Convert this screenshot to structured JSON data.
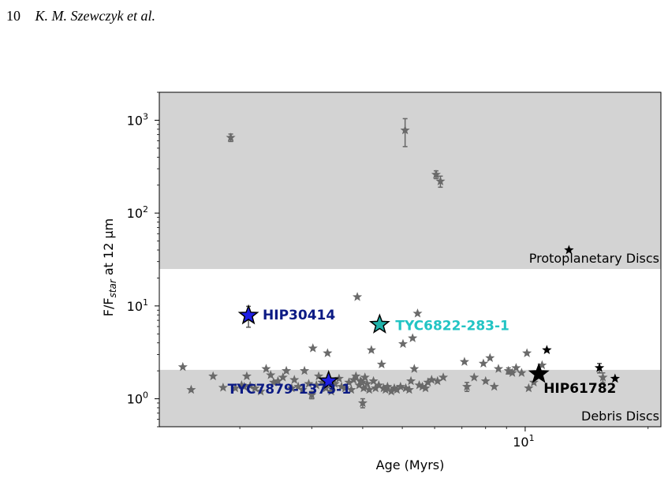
{
  "header": {
    "page_number": "10",
    "authors": "K. M. Szewczyk et al."
  },
  "chart_data": {
    "type": "scatter",
    "xlabel": "Age (Myrs)",
    "ylabel_main": "F/F",
    "ylabel_sub": "star",
    "ylabel_tail": " at 12 μm",
    "xscale": "log",
    "yscale": "log",
    "xlim": [
      1.27,
      21.5
    ],
    "ylim": [
      0.5,
      2000
    ],
    "x_ticks": [
      {
        "value": 10,
        "base": "10",
        "exp": "1"
      }
    ],
    "y_ticks": [
      {
        "value": 1,
        "base": "10",
        "exp": "0"
      },
      {
        "value": 10,
        "base": "10",
        "exp": "1"
      },
      {
        "value": 100,
        "base": "10",
        "exp": "2"
      },
      {
        "value": 1000,
        "base": "10",
        "exp": "3"
      }
    ],
    "regions": [
      {
        "label": "Protoplanetary Discs",
        "ymin": 25,
        "ymax": 2000,
        "color": "#d3d3d3"
      },
      {
        "label": "Debris Discs",
        "ymin": 0.5,
        "ymax": 2.05,
        "color": "#d3d3d3"
      }
    ],
    "highlighted": [
      {
        "label": "HIP30414",
        "x": 2.1,
        "y": 7.9,
        "err": 2.0,
        "color": "#1f1fe6",
        "label_color": "#0b1a84"
      },
      {
        "label": "TYC6822-283-1",
        "x": 4.4,
        "y": 6.3,
        "err": 0,
        "color": "#20b2aa",
        "label_color": "#22c4c4"
      },
      {
        "label": "TYC7879-1373-1",
        "x": 3.3,
        "y": 1.55,
        "err": 0,
        "color": "#1f1fe6",
        "label_color": "#0b1a84"
      },
      {
        "label": "HIP61782",
        "x": 10.8,
        "y": 1.85,
        "err": 0,
        "color": "#000000",
        "label_color": "#000000"
      }
    ],
    "black_points": [
      {
        "x": 12.8,
        "y": 40
      },
      {
        "x": 11.3,
        "y": 3.35
      },
      {
        "x": 15.2,
        "y": 2.15,
        "err": 0.25
      },
      {
        "x": 16.6,
        "y": 1.65
      }
    ],
    "grey_points": [
      {
        "x": 1.45,
        "y": 2.2
      },
      {
        "x": 1.52,
        "y": 1.25
      },
      {
        "x": 1.72,
        "y": 1.75
      },
      {
        "x": 1.82,
        "y": 1.32
      },
      {
        "x": 1.9,
        "y": 650,
        "err": 60
      },
      {
        "x": 1.95,
        "y": 1.3
      },
      {
        "x": 2.02,
        "y": 1.4
      },
      {
        "x": 2.05,
        "y": 1.35
      },
      {
        "x": 2.08,
        "y": 1.75
      },
      {
        "x": 2.12,
        "y": 1.38
      },
      {
        "x": 2.18,
        "y": 1.3
      },
      {
        "x": 2.25,
        "y": 1.2
      },
      {
        "x": 2.32,
        "y": 2.1
      },
      {
        "x": 2.38,
        "y": 1.8
      },
      {
        "x": 2.42,
        "y": 1.5
      },
      {
        "x": 2.48,
        "y": 1.55
      },
      {
        "x": 2.55,
        "y": 1.7
      },
      {
        "x": 2.6,
        "y": 2.0
      },
      {
        "x": 2.68,
        "y": 1.3
      },
      {
        "x": 2.72,
        "y": 1.6
      },
      {
        "x": 2.78,
        "y": 1.35
      },
      {
        "x": 2.85,
        "y": 1.25
      },
      {
        "x": 2.88,
        "y": 2.0
      },
      {
        "x": 2.95,
        "y": 1.45
      },
      {
        "x": 3.0,
        "y": 1.1,
        "err": 0.1
      },
      {
        "x": 3.02,
        "y": 3.5
      },
      {
        "x": 3.08,
        "y": 1.4
      },
      {
        "x": 3.12,
        "y": 1.75
      },
      {
        "x": 3.18,
        "y": 1.5
      },
      {
        "x": 3.25,
        "y": 1.3
      },
      {
        "x": 3.28,
        "y": 3.1
      },
      {
        "x": 3.35,
        "y": 1.2
      },
      {
        "x": 3.42,
        "y": 1.45
      },
      {
        "x": 3.5,
        "y": 1.65
      },
      {
        "x": 3.55,
        "y": 1.35
      },
      {
        "x": 3.62,
        "y": 1.3
      },
      {
        "x": 3.7,
        "y": 1.5
      },
      {
        "x": 3.75,
        "y": 1.25
      },
      {
        "x": 3.8,
        "y": 1.6
      },
      {
        "x": 3.85,
        "y": 1.75
      },
      {
        "x": 3.88,
        "y": 12.5
      },
      {
        "x": 3.92,
        "y": 1.4
      },
      {
        "x": 3.95,
        "y": 1.55
      },
      {
        "x": 3.98,
        "y": 1.5
      },
      {
        "x": 4.0,
        "y": 0.9,
        "err": 0.1
      },
      {
        "x": 4.02,
        "y": 1.3
      },
      {
        "x": 4.05,
        "y": 1.7
      },
      {
        "x": 4.1,
        "y": 1.45
      },
      {
        "x": 4.15,
        "y": 1.25
      },
      {
        "x": 4.2,
        "y": 3.35
      },
      {
        "x": 4.25,
        "y": 1.55
      },
      {
        "x": 4.3,
        "y": 1.3
      },
      {
        "x": 4.38,
        "y": 1.4
      },
      {
        "x": 4.45,
        "y": 2.35
      },
      {
        "x": 4.5,
        "y": 1.3
      },
      {
        "x": 4.55,
        "y": 1.25
      },
      {
        "x": 4.6,
        "y": 1.35
      },
      {
        "x": 4.7,
        "y": 1.2
      },
      {
        "x": 4.78,
        "y": 1.3
      },
      {
        "x": 4.85,
        "y": 1.25
      },
      {
        "x": 4.95,
        "y": 1.35
      },
      {
        "x": 5.02,
        "y": 3.9
      },
      {
        "x": 5.08,
        "y": 780,
        "err": 260
      },
      {
        "x": 5.1,
        "y": 1.3
      },
      {
        "x": 5.2,
        "y": 1.25
      },
      {
        "x": 5.25,
        "y": 1.55
      },
      {
        "x": 5.3,
        "y": 4.5
      },
      {
        "x": 5.35,
        "y": 2.1
      },
      {
        "x": 5.45,
        "y": 8.3
      },
      {
        "x": 5.5,
        "y": 1.4
      },
      {
        "x": 5.6,
        "y": 1.35
      },
      {
        "x": 5.7,
        "y": 1.3
      },
      {
        "x": 5.78,
        "y": 1.5
      },
      {
        "x": 5.9,
        "y": 1.6
      },
      {
        "x": 6.05,
        "y": 260,
        "err": 25
      },
      {
        "x": 6.2,
        "y": 220,
        "err": 30
      },
      {
        "x": 6.1,
        "y": 1.55
      },
      {
        "x": 6.3,
        "y": 1.7
      },
      {
        "x": 7.1,
        "y": 2.5
      },
      {
        "x": 7.2,
        "y": 1.35,
        "err": 0.15
      },
      {
        "x": 7.5,
        "y": 1.7
      },
      {
        "x": 7.9,
        "y": 2.4
      },
      {
        "x": 8.0,
        "y": 1.55
      },
      {
        "x": 8.2,
        "y": 2.75
      },
      {
        "x": 8.4,
        "y": 1.35
      },
      {
        "x": 8.6,
        "y": 2.1
      },
      {
        "x": 9.1,
        "y": 2.0,
        "err": 0.15
      },
      {
        "x": 9.3,
        "y": 1.9
      },
      {
        "x": 9.5,
        "y": 2.15
      },
      {
        "x": 9.8,
        "y": 1.9
      },
      {
        "x": 10.1,
        "y": 3.1
      },
      {
        "x": 10.2,
        "y": 1.3
      },
      {
        "x": 10.5,
        "y": 1.5
      },
      {
        "x": 11.0,
        "y": 2.3
      },
      {
        "x": 15.5,
        "y": 1.7,
        "err": 0.2
      }
    ]
  }
}
